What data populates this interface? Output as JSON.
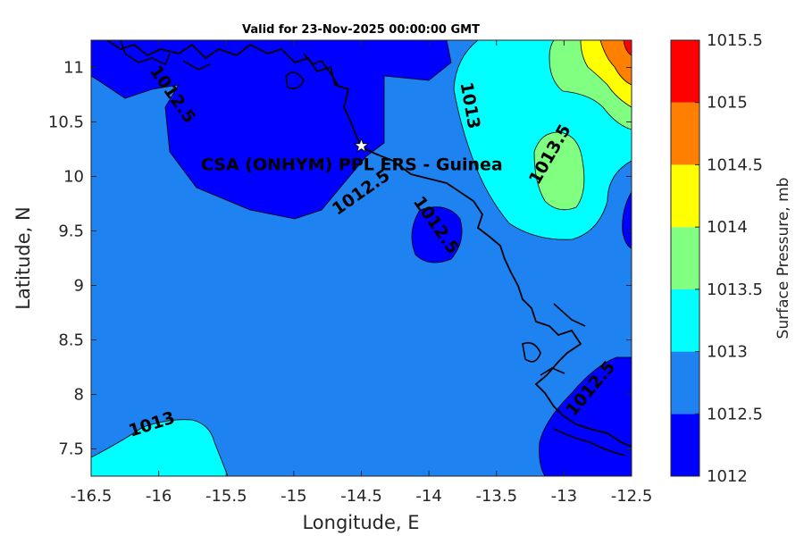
{
  "chart_data": {
    "type": "heatmap",
    "subtype": "filled-contour-map",
    "title": "Valid for 23-Nov-2025 00:00:00 GMT",
    "xlabel": "Longitude, E",
    "ylabel": "Latitude, N",
    "xlim": [
      -16.5,
      -12.5
    ],
    "ylim": [
      7.25,
      11.25
    ],
    "xticks": [
      "-16.5",
      "-16",
      "-15.5",
      "-15",
      "-14.5",
      "-14",
      "-13.5",
      "-13",
      "-12.5"
    ],
    "yticks": [
      "7.5",
      "8",
      "8.5",
      "9",
      "9.5",
      "10",
      "10.5",
      "11"
    ],
    "colorbar": {
      "label": "Surface Pressure, mb",
      "levels": [
        1012,
        1012.5,
        1013,
        1013.5,
        1014,
        1014.5,
        1015,
        1015.5
      ],
      "tick_labels": [
        "1012",
        "1012.5",
        "1013",
        "1013.5",
        "1014",
        "1014.5",
        "1015",
        "1015.5"
      ],
      "colors": [
        "#0000ff",
        "#1e82f0",
        "#00ffff",
        "#80ff80",
        "#ffff00",
        "#ff8000",
        "#ff0000",
        "#800000"
      ]
    },
    "contour_labels": [
      {
        "text": "1012.5",
        "lon": -15.9,
        "lat": 10.75,
        "angle": 55
      },
      {
        "text": "1012.5",
        "lon": -14.5,
        "lat": 9.85,
        "angle": -35
      },
      {
        "text": "1012.5",
        "lon": -13.95,
        "lat": 9.55,
        "angle": 55
      },
      {
        "text": "1012.5",
        "lon": -12.8,
        "lat": 8.05,
        "angle": -50
      },
      {
        "text": "1013",
        "lon": -13.7,
        "lat": 10.65,
        "angle": 80
      },
      {
        "text": "1013.5",
        "lon": -13.1,
        "lat": 10.2,
        "angle": -60
      },
      {
        "text": "1013",
        "lon": -16.05,
        "lat": 7.72,
        "angle": -18
      }
    ],
    "station": {
      "name": "CSA (ONHYM) PPL ERS  - Guinea",
      "lon": -14.5,
      "lat": 10.28,
      "marker": "white-star"
    },
    "grid": false
  }
}
